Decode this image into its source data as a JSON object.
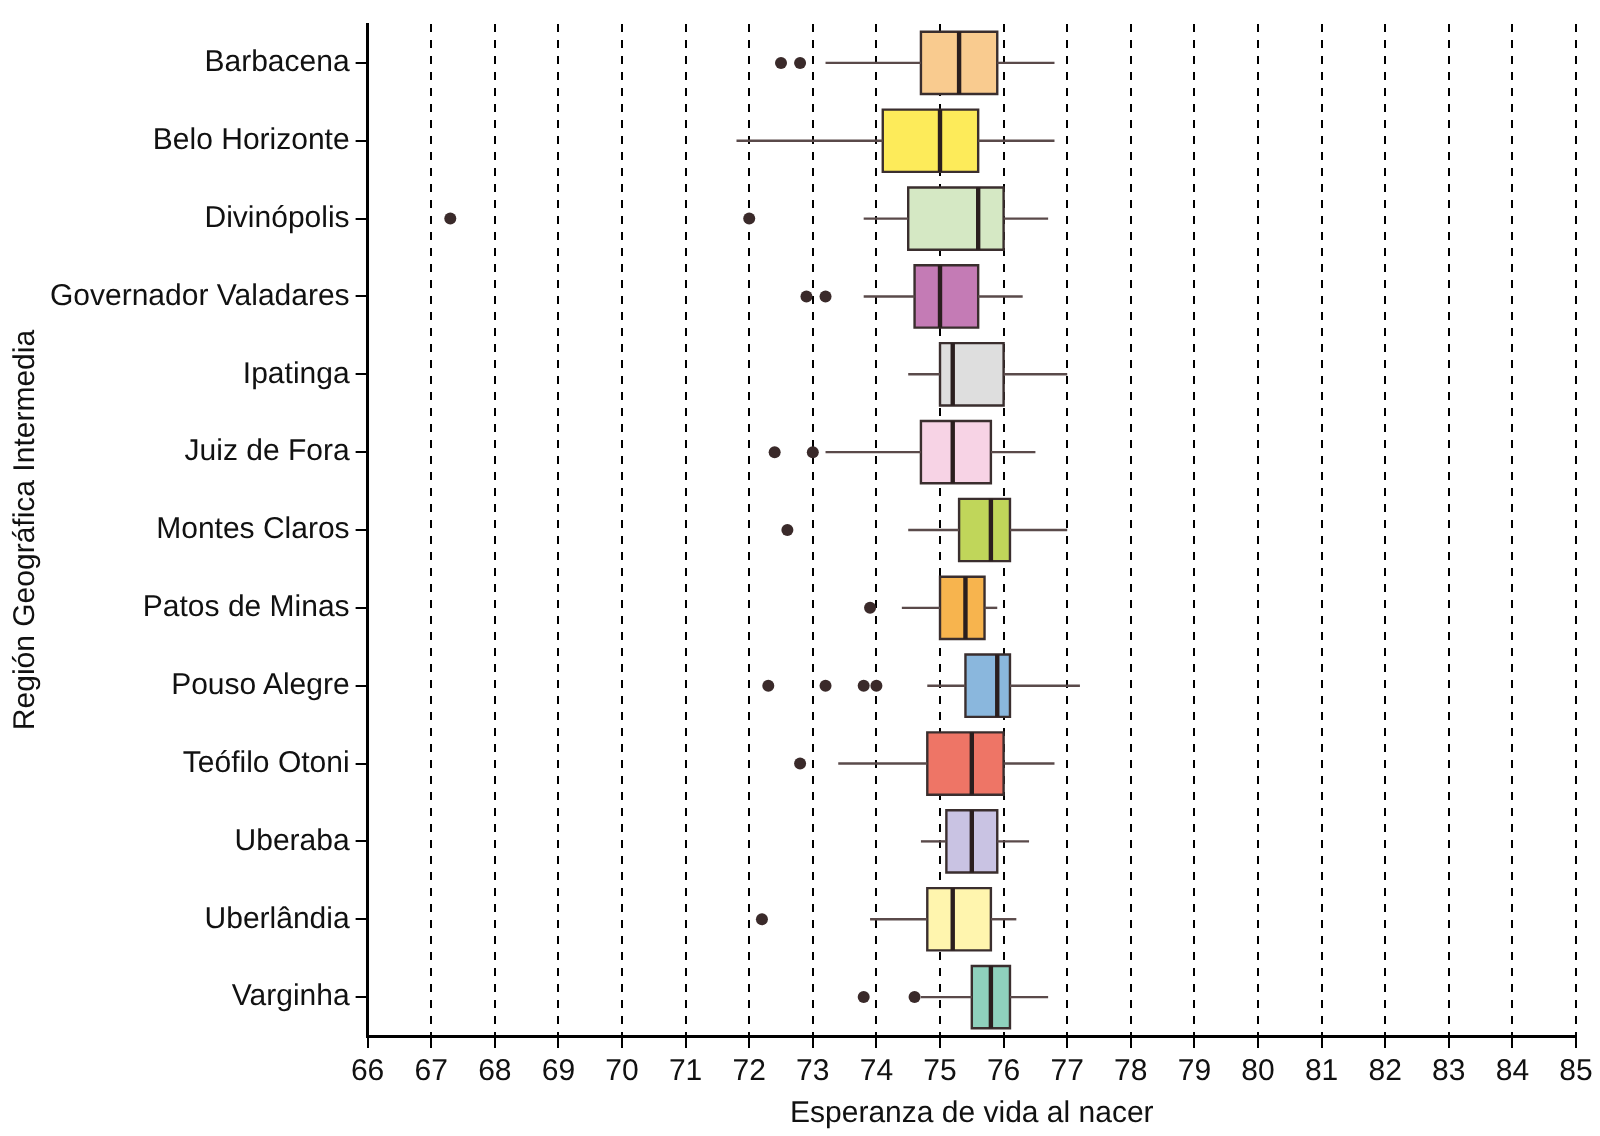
{
  "chart_data": {
    "type": "box",
    "orientation": "horizontal",
    "xlabel": "Esperanza de vida al nacer",
    "ylabel": "Región Geográfica Intermedia",
    "categories": [
      "Barbacena",
      "Belo Horizonte",
      "Divinópolis",
      "Governador Valadares",
      "Ipatinga",
      "Juiz de Fora",
      "Montes Claros",
      "Patos de Minas",
      "Pouso Alegre",
      "Teófilo Otoni",
      "Uberaba",
      "Uberlândia",
      "Varginha"
    ],
    "colors": [
      "#f9cb8f",
      "#fdeb5a",
      "#d5e8c4",
      "#c47bb5",
      "#dedede",
      "#f7d3e5",
      "#c0d65a",
      "#f7b44e",
      "#8ab7dd",
      "#ee7566",
      "#c9c3e3",
      "#fff5ae",
      "#8fd1bd"
    ],
    "boxes": [
      {
        "low": 73.2,
        "q1": 74.7,
        "median": 75.3,
        "q3": 75.9,
        "high": 76.8,
        "outliers": [
          72.5,
          72.8
        ]
      },
      {
        "low": 71.8,
        "q1": 74.1,
        "median": 75.0,
        "q3": 75.6,
        "high": 76.8
      },
      {
        "low": 73.8,
        "q1": 74.5,
        "median": 75.6,
        "q3": 76.0,
        "high": 76.7,
        "outliers": [
          67.3,
          72.0
        ]
      },
      {
        "low": 73.8,
        "q1": 74.6,
        "median": 75.0,
        "q3": 75.6,
        "high": 76.3,
        "outliers": [
          72.9,
          73.2
        ]
      },
      {
        "low": 74.5,
        "q1": 75.0,
        "median": 75.2,
        "q3": 76.0,
        "high": 77.0
      },
      {
        "low": 73.2,
        "q1": 74.7,
        "median": 75.2,
        "q3": 75.8,
        "high": 76.5,
        "outliers": [
          72.4,
          73.0
        ]
      },
      {
        "low": 74.5,
        "q1": 75.3,
        "median": 75.8,
        "q3": 76.1,
        "high": 77.0,
        "outliers": [
          72.6
        ]
      },
      {
        "low": 74.4,
        "q1": 75.0,
        "median": 75.4,
        "q3": 75.7,
        "high": 75.9,
        "outliers": [
          73.9
        ]
      },
      {
        "low": 74.8,
        "q1": 75.4,
        "median": 75.9,
        "q3": 76.1,
        "high": 77.2,
        "outliers": [
          72.3,
          73.2,
          73.8,
          74.0
        ]
      },
      {
        "low": 73.4,
        "q1": 74.8,
        "median": 75.5,
        "q3": 76.0,
        "high": 76.8,
        "outliers": [
          72.8
        ]
      },
      {
        "low": 74.7,
        "q1": 75.1,
        "median": 75.5,
        "q3": 75.9,
        "high": 76.4
      },
      {
        "low": 73.9,
        "q1": 74.8,
        "median": 75.2,
        "q3": 75.8,
        "high": 76.2,
        "outliers": [
          72.2
        ]
      },
      {
        "low": 74.7,
        "q1": 75.5,
        "median": 75.8,
        "q3": 76.1,
        "high": 76.7,
        "outliers": [
          73.8,
          74.6
        ]
      }
    ],
    "xlim": [
      66,
      85
    ],
    "xticks": [
      66,
      67,
      68,
      69,
      70,
      71,
      72,
      73,
      74,
      75,
      76,
      77,
      78,
      79,
      80,
      81,
      82,
      83,
      84,
      85
    ],
    "grid": "x",
    "legend": false
  }
}
